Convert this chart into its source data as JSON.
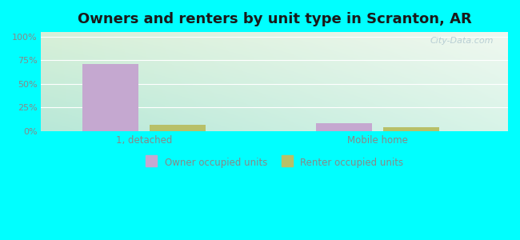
{
  "title": "Owners and renters by unit type in Scranton, AR",
  "title_fontsize": 13,
  "categories": [
    "1, detached",
    "Mobile home"
  ],
  "owner_values": [
    71.0,
    8.0
  ],
  "renter_values": [
    7.0,
    4.0
  ],
  "owner_color": "#c5a8d0",
  "renter_color": "#b8c068",
  "yticks": [
    0,
    25,
    50,
    75,
    100
  ],
  "ytick_labels": [
    "0%",
    "25%",
    "50%",
    "75%",
    "100%"
  ],
  "ylim": [
    0,
    105
  ],
  "bar_width": 0.12,
  "group_positions": [
    0.22,
    0.72
  ],
  "xlim": [
    0.0,
    1.0
  ],
  "bg_topleft": "#d8f0d8",
  "bg_topright": "#f0f8f0",
  "bg_bottomleft": "#c0ece0",
  "bg_bottomright": "#e0f5ec",
  "outer_bg": "#00FFFF",
  "legend_owner": "Owner occupied units",
  "legend_renter": "Renter occupied units",
  "watermark": "City-Data.com",
  "grid_color": "#ccddcc",
  "tick_color": "#888888"
}
